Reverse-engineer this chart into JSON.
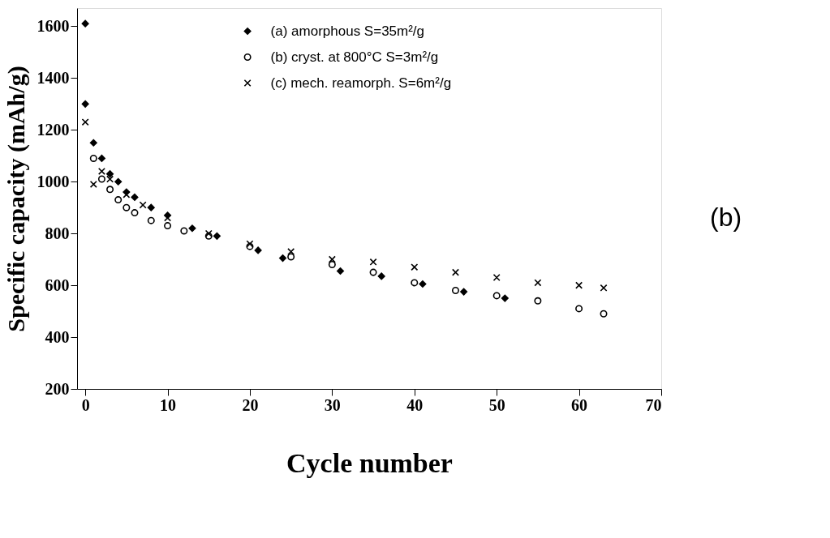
{
  "chart_data": {
    "type": "scatter",
    "xlabel": "Cycle number",
    "ylabel": "Specific capacity (mAh/g)",
    "xlim": [
      -1,
      70
    ],
    "xticks": [
      0,
      10,
      20,
      30,
      40,
      50,
      60,
      70
    ],
    "ylim": [
      200,
      1670
    ],
    "yticks": [
      200,
      400,
      600,
      800,
      1000,
      1200,
      1400,
      1600
    ],
    "legend": "top",
    "grid": false,
    "annotations": [
      "(b)"
    ],
    "series": [
      {
        "name": "(a) amorphous  S=35m²/g",
        "color": "#000000",
        "marker": "diamond",
        "x": [
          0,
          0,
          1,
          2,
          3,
          4,
          5,
          6,
          8,
          10,
          13,
          16,
          21,
          24,
          31,
          36,
          41,
          46,
          51
        ],
        "values": [
          1610,
          1300,
          1150,
          1090,
          1030,
          1000,
          960,
          940,
          900,
          870,
          820,
          790,
          735,
          705,
          655,
          635,
          605,
          575,
          550
        ]
      },
      {
        "name": "(b) cryst. at 800°C  S=3m²/g",
        "color": "#000000",
        "marker": "circle",
        "x": [
          1,
          2,
          3,
          4,
          5,
          6,
          8,
          10,
          12,
          15,
          20,
          25,
          30,
          35,
          40,
          45,
          50,
          55,
          60,
          63
        ],
        "values": [
          1090,
          1010,
          970,
          930,
          900,
          880,
          850,
          830,
          810,
          790,
          750,
          710,
          680,
          650,
          610,
          580,
          560,
          540,
          510,
          490
        ]
      },
      {
        "name": "(c) mech. reamorph.  S=6m²/g",
        "color": "#000000",
        "marker": "cross",
        "x": [
          0,
          1,
          2,
          3,
          5,
          7,
          10,
          15,
          20,
          25,
          30,
          35,
          40,
          45,
          50,
          55,
          60,
          63
        ],
        "values": [
          1230,
          990,
          1040,
          1010,
          950,
          910,
          860,
          800,
          760,
          730,
          700,
          690,
          670,
          650,
          630,
          610,
          600,
          590
        ]
      }
    ]
  }
}
